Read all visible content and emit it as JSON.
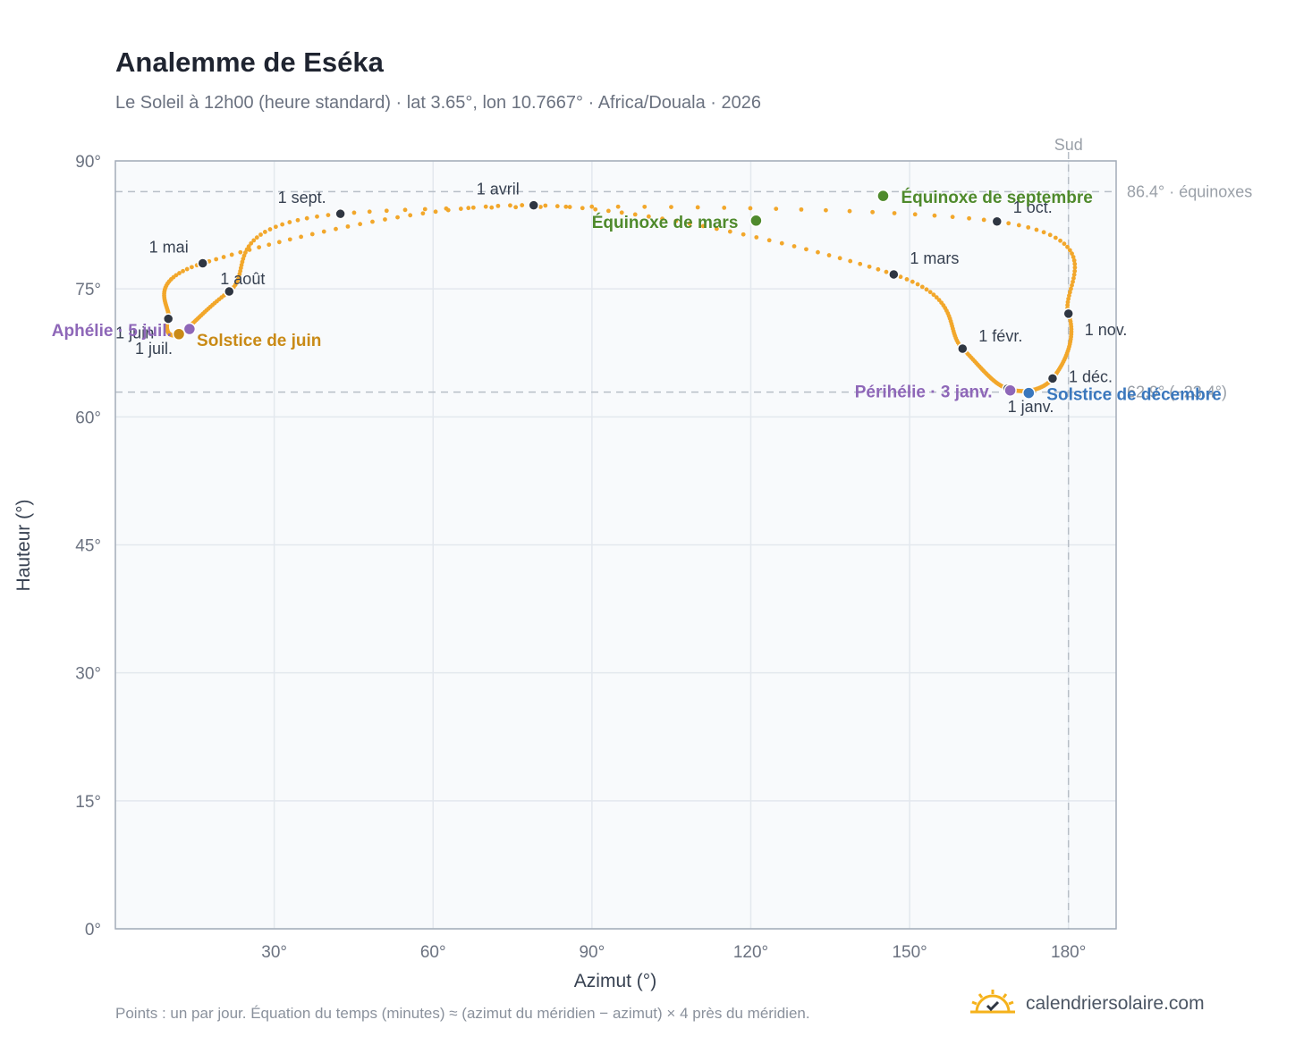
{
  "header": {
    "title": "Analemme de Eséka",
    "subtitle": "Le Soleil à 12h00 (heure standard) · lat 3.65°, lon 10.7667° · Africa/Douala · 2026"
  },
  "footer": {
    "note": "Points : un par jour. Équation du temps (minutes) ≈ (azimut du méridien − azimut) × 4 près du méridien."
  },
  "brand": {
    "name": "calendriersolaire.com",
    "icon": "sun-logo-icon"
  },
  "colors": {
    "path": "#f2a72b",
    "month_marker": "#2f3642",
    "equinox": "#4f8a2c",
    "june_solstice": "#c98a16",
    "december_solstice": "#3a77bd",
    "apsis": "#8e67b8",
    "reference_line": "#b7bec7",
    "grid": "#e3e8ee",
    "plot_bg": "#f8fafc",
    "frame": "#a3acb8"
  },
  "chart_data": {
    "type": "scatter",
    "xlabel": "Azimut (°)",
    "ylabel": "Hauteur (°)",
    "xlim": [
      0,
      189
    ],
    "ylim": [
      0,
      90
    ],
    "x_ticks": [
      30,
      60,
      90,
      120,
      150,
      180
    ],
    "x_tick_labels": [
      "30°",
      "60°",
      "90°",
      "120°",
      "150°",
      "180°"
    ],
    "y_ticks": [
      0,
      15,
      30,
      45,
      60,
      75,
      90
    ],
    "y_tick_labels": [
      "0°",
      "15°",
      "30°",
      "45°",
      "60°",
      "75°",
      "90°"
    ],
    "grid": true,
    "south": {
      "azimuth": 180,
      "label": "Sud"
    },
    "reference_lines": [
      {
        "altitude": 86.4,
        "label": "86.4° · équinoxes"
      },
      {
        "altitude": 62.9,
        "label": "62.9° (−23.4°)"
      }
    ],
    "month_markers": [
      {
        "label": "1 janv.",
        "azimuth": 168.5,
        "altitude": 63.3
      },
      {
        "label": "1 févr.",
        "azimuth": 160.0,
        "altitude": 68.0
      },
      {
        "label": "1 mars",
        "azimuth": 147.0,
        "altitude": 76.7
      },
      {
        "label": "1 avril",
        "azimuth": 79.0,
        "altitude": 84.8
      },
      {
        "label": "1 mai",
        "azimuth": 16.5,
        "altitude": 78.0
      },
      {
        "label": "1 juin",
        "azimuth": 10.0,
        "altitude": 71.5
      },
      {
        "label": "1 juil.",
        "azimuth": 12.0,
        "altitude": 69.7
      },
      {
        "label": "1 août",
        "azimuth": 21.5,
        "altitude": 74.7
      },
      {
        "label": "1 sept.",
        "azimuth": 42.5,
        "altitude": 83.8
      },
      {
        "label": "1 oct.",
        "azimuth": 166.5,
        "altitude": 82.9
      },
      {
        "label": "1 nov.",
        "azimuth": 180.0,
        "altitude": 72.1
      },
      {
        "label": "1 déc.",
        "azimuth": 177.0,
        "altitude": 64.5
      }
    ],
    "events": [
      {
        "label": "Équinoxe de mars",
        "azimuth": 121.0,
        "altitude": 83.0,
        "kind": "equinox"
      },
      {
        "label": "Solstice de juin",
        "azimuth": 12.0,
        "altitude": 69.7,
        "kind": "june_solstice"
      },
      {
        "label": "Équinoxe de septembre",
        "azimuth": 145.0,
        "altitude": 85.9,
        "kind": "equinox"
      },
      {
        "label": "Solstice de décembre",
        "azimuth": 172.5,
        "altitude": 62.8,
        "kind": "december_solstice"
      },
      {
        "label": "Périhélie · 3 janv.",
        "azimuth": 169.0,
        "altitude": 63.1,
        "kind": "apsis"
      },
      {
        "label": "Aphélie · 5 juil.",
        "azimuth": 14.0,
        "altitude": 70.3,
        "kind": "apsis"
      }
    ]
  }
}
